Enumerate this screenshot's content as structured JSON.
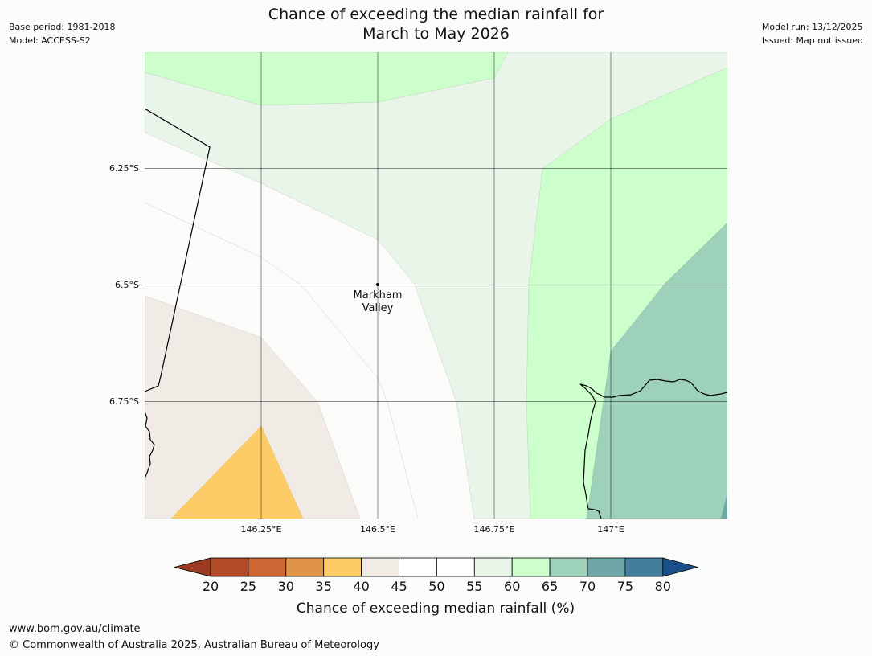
{
  "header": {
    "title_line1": "Chance of exceeding the median rainfall for",
    "title_line2": "March to May 2026",
    "base_period": "Base period: 1981-2018",
    "model": "Model: ACCESS-S2",
    "model_run": "Model run: 13/12/2025",
    "issued": "Issued: Map not issued"
  },
  "map": {
    "lat_labels": [
      "6.25°S",
      "6.5°S",
      "6.75°S"
    ],
    "lon_labels": [
      "146.25°E",
      "146.5°E",
      "146.75°E",
      "147°E"
    ],
    "place": {
      "name_line1": "Markham",
      "name_line2": "Valley"
    }
  },
  "legend": {
    "title": "Chance of exceeding median rainfall (%)",
    "ticks": [
      "20",
      "25",
      "30",
      "35",
      "40",
      "45",
      "50",
      "55",
      "60",
      "65",
      "70",
      "75",
      "80"
    ],
    "colors": {
      "below20": "#9c3a22",
      "c20_25": "#b24a26",
      "c25_30": "#cc6633",
      "c30_35": "#e09447",
      "c35_40": "#fecc66",
      "c40_45": "#f1ebe6",
      "c45_50": "#ffffff",
      "c50_55": "#ffffff",
      "c55_60": "#eaf5ea",
      "c60_65": "#ccffcc",
      "c65_70": "#9dd1b9",
      "c70_75": "#6fa6a6",
      "c75_80": "#437e9e",
      "above80": "#1a4f8a"
    }
  },
  "footer": {
    "url": "www.bom.gov.au/climate",
    "copyright": "© Commonwealth of Australia 2025, Australian Bureau of Meteorology"
  }
}
